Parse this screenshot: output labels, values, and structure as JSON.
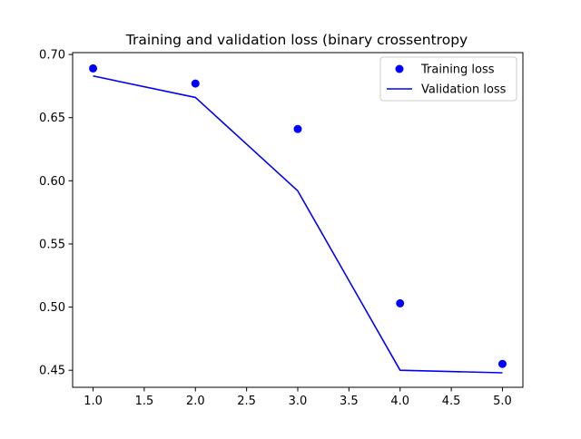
{
  "chart_data": {
    "type": "line",
    "title": "Training and validation loss (binary crossentropy",
    "xlabel": "",
    "ylabel": "",
    "x": [
      1.0,
      2.0,
      3.0,
      4.0,
      5.0
    ],
    "xlim": [
      0.8,
      5.2
    ],
    "ylim": [
      0.4365,
      0.7015
    ],
    "x_ticks": [
      "1.0",
      "1.5",
      "2.0",
      "2.5",
      "3.0",
      "3.5",
      "4.0",
      "4.5",
      "5.0"
    ],
    "y_ticks": [
      "0.45",
      "0.50",
      "0.55",
      "0.60",
      "0.65",
      "0.70"
    ],
    "grid": false,
    "legend_position": "top-right",
    "series": [
      {
        "name": "Training loss",
        "style": "points",
        "color": "#0000ff",
        "values": [
          0.689,
          0.677,
          0.641,
          0.503,
          0.455
        ]
      },
      {
        "name": "Validation loss",
        "style": "line",
        "color": "#0000ff",
        "values": [
          0.683,
          0.666,
          0.592,
          0.45,
          0.448
        ]
      }
    ]
  }
}
